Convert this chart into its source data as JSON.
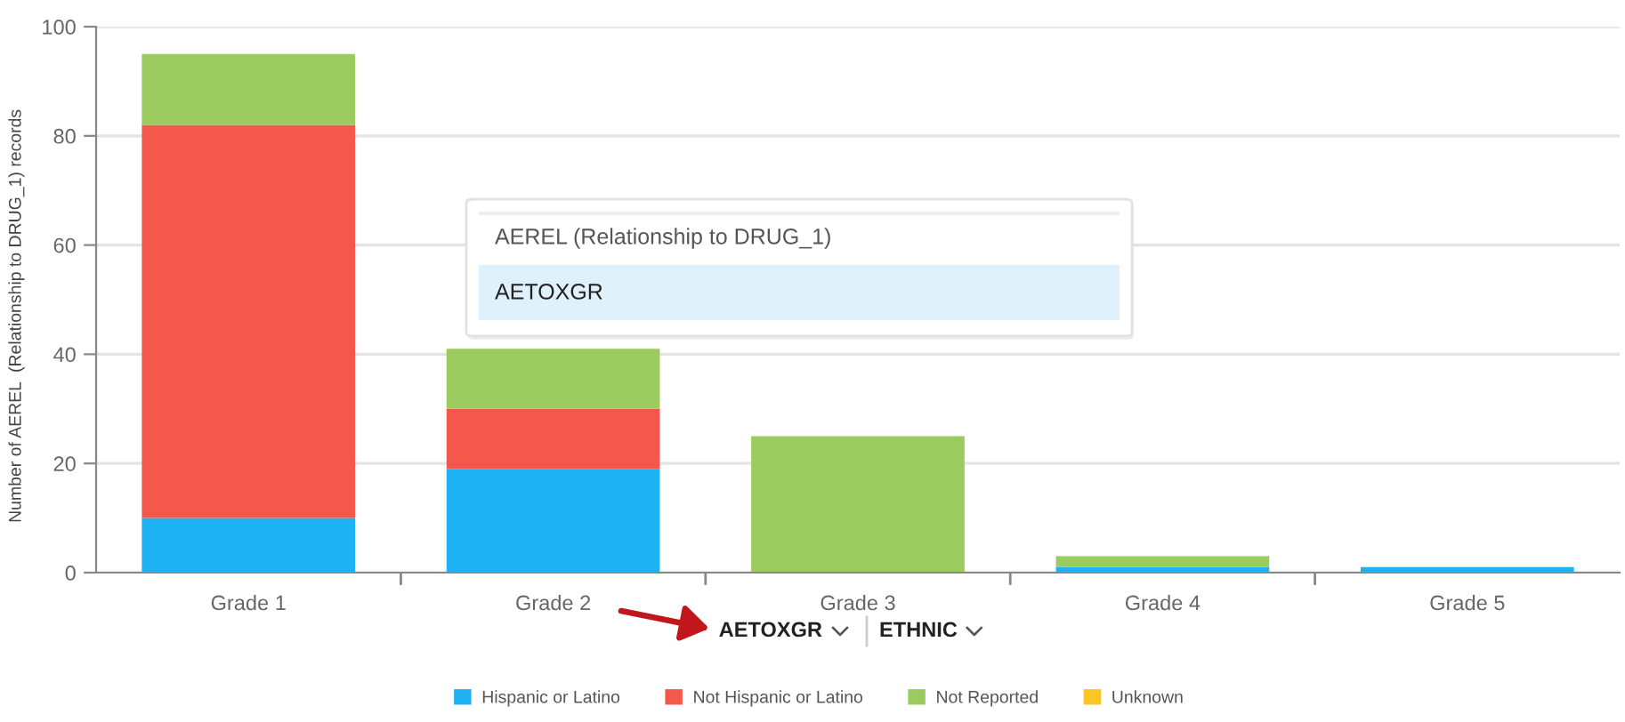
{
  "chart_data": {
    "type": "bar",
    "stacked": true,
    "categories": [
      "Grade 1",
      "Grade 2",
      "Grade 3",
      "Grade 4",
      "Grade 5"
    ],
    "series": [
      {
        "name": "Hispanic or Latino",
        "color": "#1eb2f2",
        "values": [
          10,
          19,
          null,
          1,
          1
        ]
      },
      {
        "name": "Not Hispanic or Latino",
        "color": "#f4574b",
        "values": [
          72,
          11,
          null,
          null,
          null
        ]
      },
      {
        "name": "Not Reported",
        "color": "#9bca5e",
        "values": [
          13,
          11,
          25,
          2,
          null
        ]
      },
      {
        "name": "Unknown",
        "color": "#fdc426",
        "values": [
          null,
          null,
          null,
          null,
          null
        ]
      }
    ],
    "ylabel": "Number of AEREL  (Relationship to DRUG_1) records",
    "xlabel": "AETOXGR",
    "legend_title": "ETHNIC",
    "annotations": [
      "AEREL (Relationship to DRUG_1)",
      "AETOXGR"
    ],
    "ylim": [
      0,
      100
    ],
    "yticks": [
      0,
      20,
      40,
      60,
      80,
      100
    ],
    "grid": "y",
    "legend": "bottom"
  }
}
